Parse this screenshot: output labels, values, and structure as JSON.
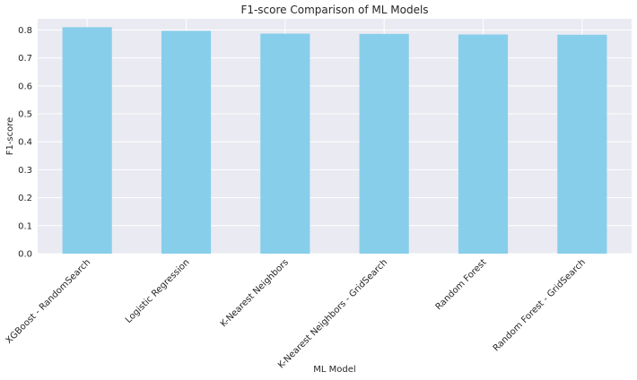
{
  "chart_data": {
    "type": "bar",
    "title": "F1-score Comparison of ML Models",
    "xlabel": "ML Model",
    "ylabel": "F1-score",
    "categories": [
      "XGBoost - RandomSearch",
      "Logistic Regression",
      "K-Nearest Neighbors",
      "K-Nearest Neighbors - GridSearch",
      "Random Forest",
      "Random Forest - GridSearch"
    ],
    "values": [
      0.81,
      0.797,
      0.787,
      0.786,
      0.784,
      0.783
    ],
    "ylim": [
      0,
      0.84
    ],
    "yticks": [
      "0.0",
      "0.1",
      "0.2",
      "0.3",
      "0.4",
      "0.5",
      "0.6",
      "0.7",
      "0.8"
    ],
    "grid": true,
    "colors": {
      "bar": "#87CEEB",
      "plot_background": "#EAEAF2",
      "grid": "#FFFFFF",
      "text": "#262626"
    }
  }
}
